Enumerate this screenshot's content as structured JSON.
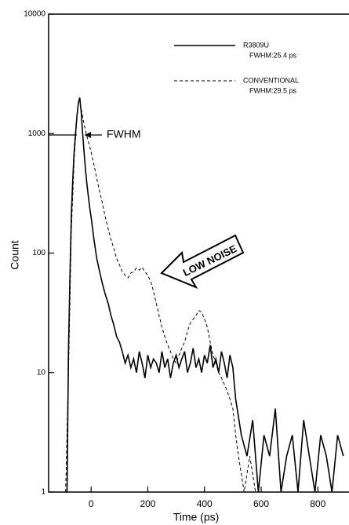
{
  "chart_data": {
    "type": "line",
    "x_label": "Time (ps)",
    "y_label": "Count",
    "xlim": [
      -150,
      910
    ],
    "xticks": [
      0,
      200,
      400,
      600,
      800
    ],
    "ylim": [
      1,
      10000
    ],
    "yticks": [
      1,
      10,
      100,
      1000,
      10000
    ],
    "y_scale": "log",
    "legend_position": "upper right",
    "annotations": [
      "FWHM",
      "LOW NOISE"
    ],
    "series": [
      {
        "name": "R3809U",
        "note": "FWHM:25.4 ps",
        "color": "#000000",
        "style": "solid",
        "x": [
          -90,
          -85,
          -80,
          -75,
          -70,
          -65,
          -60,
          -55,
          -50,
          -45,
          -40,
          -35,
          -30,
          -25,
          -20,
          -15,
          -10,
          -5,
          0,
          10,
          20,
          30,
          40,
          50,
          60,
          70,
          80,
          90,
          100,
          110,
          120,
          130,
          140,
          150,
          160,
          170,
          180,
          190,
          200,
          210,
          220,
          230,
          240,
          250,
          260,
          270,
          280,
          290,
          300,
          310,
          320,
          330,
          340,
          350,
          360,
          370,
          380,
          390,
          400,
          410,
          420,
          430,
          440,
          450,
          460,
          470,
          480,
          490,
          500,
          510,
          530,
          550,
          570,
          590,
          610,
          630,
          650,
          670,
          690,
          710,
          730,
          750,
          770,
          790,
          810,
          830,
          850,
          870,
          890
        ],
        "values": [
          1,
          1,
          15,
          60,
          200,
          400,
          700,
          1000,
          1400,
          1800,
          2000,
          1500,
          1000,
          700,
          500,
          380,
          300,
          240,
          200,
          130,
          90,
          70,
          55,
          45,
          38,
          30,
          25,
          20,
          18,
          15,
          12,
          14,
          11,
          13,
          10,
          15,
          12,
          9,
          14,
          11,
          13,
          12,
          10,
          15,
          11,
          13,
          9,
          12,
          14,
          11,
          13,
          15,
          10,
          12,
          16,
          11,
          13,
          10,
          14,
          12,
          17,
          11,
          13,
          10,
          15,
          12,
          9,
          14,
          11,
          6,
          3,
          2,
          4,
          1,
          3,
          2,
          5,
          1,
          2,
          3,
          1,
          4,
          2,
          1,
          3,
          2,
          1,
          3,
          2
        ]
      },
      {
        "name": "CONVENTIONAL",
        "note": "FWHM:29.5 ps",
        "color": "#000000",
        "style": "dashed",
        "x": [
          -90,
          -80,
          -70,
          -60,
          -50,
          -42,
          -35,
          -25,
          -15,
          0,
          10,
          20,
          30,
          40,
          50,
          60,
          70,
          80,
          90,
          100,
          110,
          120,
          130,
          140,
          150,
          160,
          170,
          180,
          190,
          200,
          210,
          220,
          230,
          240,
          250,
          260,
          270,
          280,
          290,
          300,
          310,
          320,
          330,
          340,
          350,
          360,
          370,
          380,
          390,
          400,
          410,
          420,
          430,
          440,
          450,
          460,
          470,
          480,
          490,
          500,
          510,
          520,
          540,
          560,
          580,
          600,
          650,
          700,
          750,
          800,
          850,
          900
        ],
        "values": [
          1,
          10,
          150,
          600,
          1400,
          2000,
          1600,
          1200,
          950,
          700,
          550,
          420,
          330,
          260,
          200,
          160,
          130,
          110,
          90,
          80,
          70,
          65,
          62,
          68,
          70,
          75,
          72,
          76,
          70,
          65,
          58,
          48,
          38,
          30,
          24,
          20,
          17,
          15,
          13,
          12,
          14,
          16,
          18,
          22,
          26,
          28,
          30,
          33,
          32,
          28,
          24,
          18,
          14,
          12,
          10,
          9,
          8,
          7,
          6,
          5,
          3,
          2,
          1,
          2,
          1,
          1,
          1,
          1,
          1,
          1,
          1,
          1
        ]
      }
    ]
  }
}
